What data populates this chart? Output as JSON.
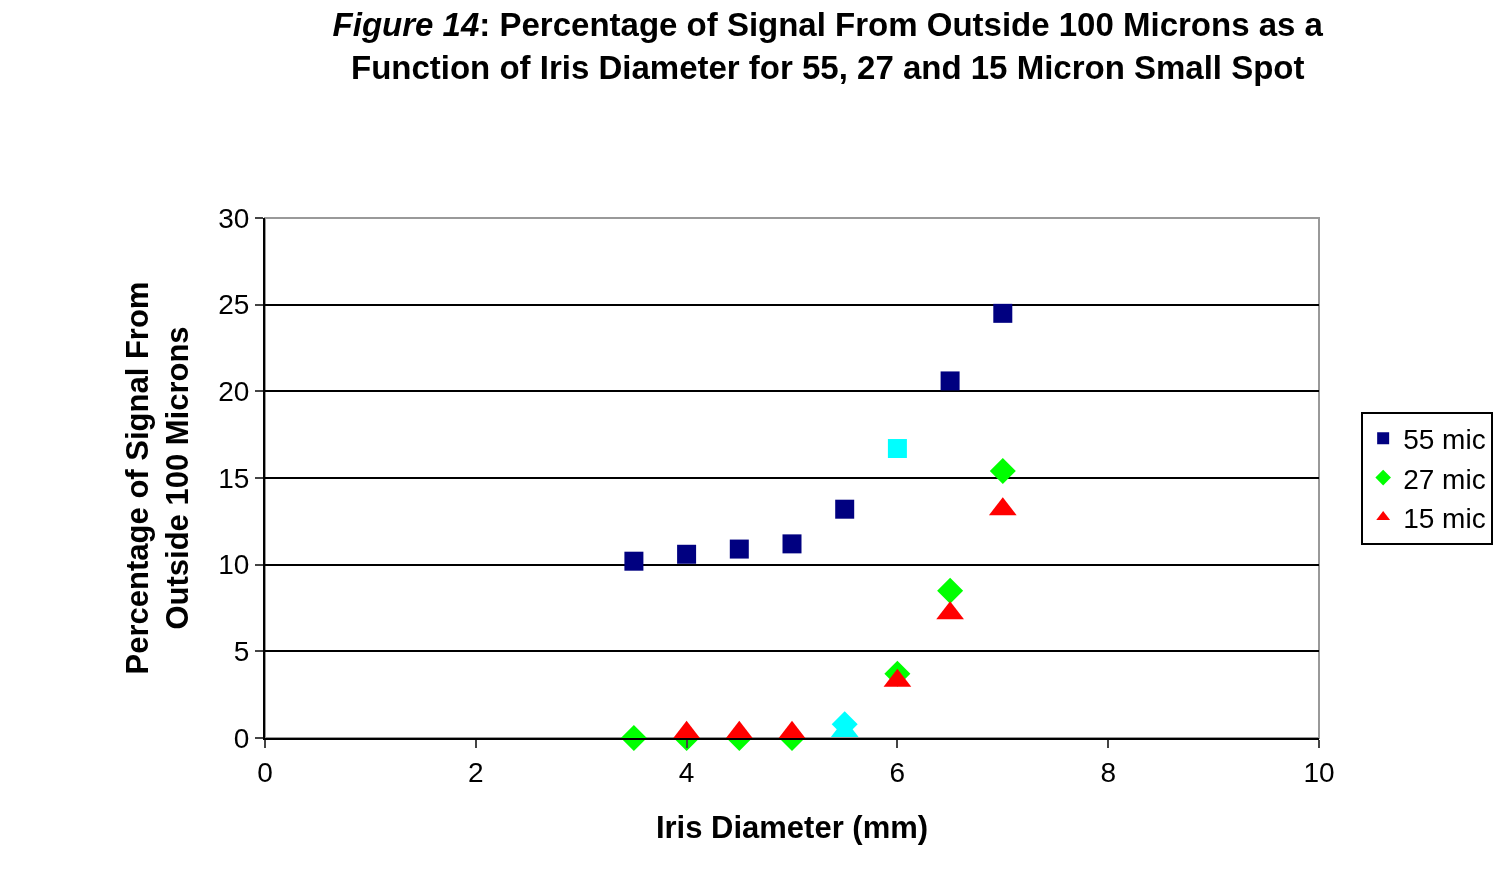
{
  "chart_data": {
    "type": "scatter",
    "title": "Figure 14: Percentage of Signal From Outside 100 Microns as a\nFunction of Iris Diameter for 55, 27 and 15 Micron Small Spot",
    "xlabel": "Iris Diameter (mm)",
    "ylabel": "Percentage of Signal From\nOutside 100 Microns",
    "x": [
      3.5,
      4,
      4.5,
      5,
      5.5,
      6,
      6.5,
      7
    ],
    "series": [
      {
        "name": "55 mic",
        "color": "#000080",
        "marker": "square",
        "values": [
          10.2,
          10.6,
          10.9,
          11.2,
          13.2,
          16.7,
          20.6,
          24.5
        ],
        "colors": [
          null,
          null,
          null,
          null,
          null,
          "#00ffff",
          null,
          null
        ]
      },
      {
        "name": "27 mic",
        "color": "#00ff00",
        "marker": "diamond",
        "values": [
          0,
          0,
          0,
          0,
          0.8,
          3.7,
          8.5,
          15.4
        ],
        "colors": [
          null,
          null,
          null,
          null,
          "#00ffff",
          null,
          null,
          null
        ]
      },
      {
        "name": "15 mic",
        "color": "#ff0000",
        "marker": "triangle",
        "values": [
          null,
          0.3,
          0.3,
          0.3,
          0.4,
          3.3,
          7.2,
          13.2
        ],
        "colors": [
          null,
          null,
          null,
          null,
          "#00ffff",
          null,
          null,
          null
        ]
      }
    ],
    "xlim": [
      0,
      10
    ],
    "xticks": [
      0,
      2,
      4,
      6,
      8,
      10
    ],
    "ylim": [
      0,
      30
    ],
    "yticks": [
      0,
      5,
      10,
      15,
      20,
      25,
      30
    ],
    "grid": "y",
    "legend": "right"
  }
}
